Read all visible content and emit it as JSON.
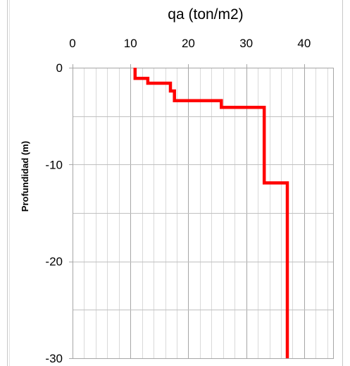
{
  "chart_data": {
    "type": "line",
    "title": "qa (ton/m2)",
    "xlabel": "qa (ton/m2)",
    "ylabel": "Profundidad (m)",
    "xlim": [
      0,
      45
    ],
    "ylim": [
      -30,
      0
    ],
    "x_ticks": [
      0,
      10,
      20,
      30,
      40
    ],
    "x_tick_labels": [
      "0",
      "10",
      "20",
      "30",
      "40"
    ],
    "y_ticks": [
      0,
      -10,
      -20,
      -30
    ],
    "y_tick_labels": [
      "0",
      "-10",
      "-20",
      "-30"
    ],
    "x_axis_position": "top",
    "grid": true,
    "series": [
      {
        "color": "#ff0000",
        "x": [
          10.8,
          10.8,
          13.0,
          13.0,
          16.9,
          16.9,
          17.6,
          17.6,
          25.7,
          25.7,
          33.1,
          33.1,
          37.1,
          37.1
        ],
        "y": [
          0,
          -1.1,
          -1.1,
          -1.6,
          -1.6,
          -2.4,
          -2.4,
          -3.4,
          -3.4,
          -4.1,
          -4.1,
          -11.9,
          -11.9,
          -30
        ]
      }
    ]
  }
}
